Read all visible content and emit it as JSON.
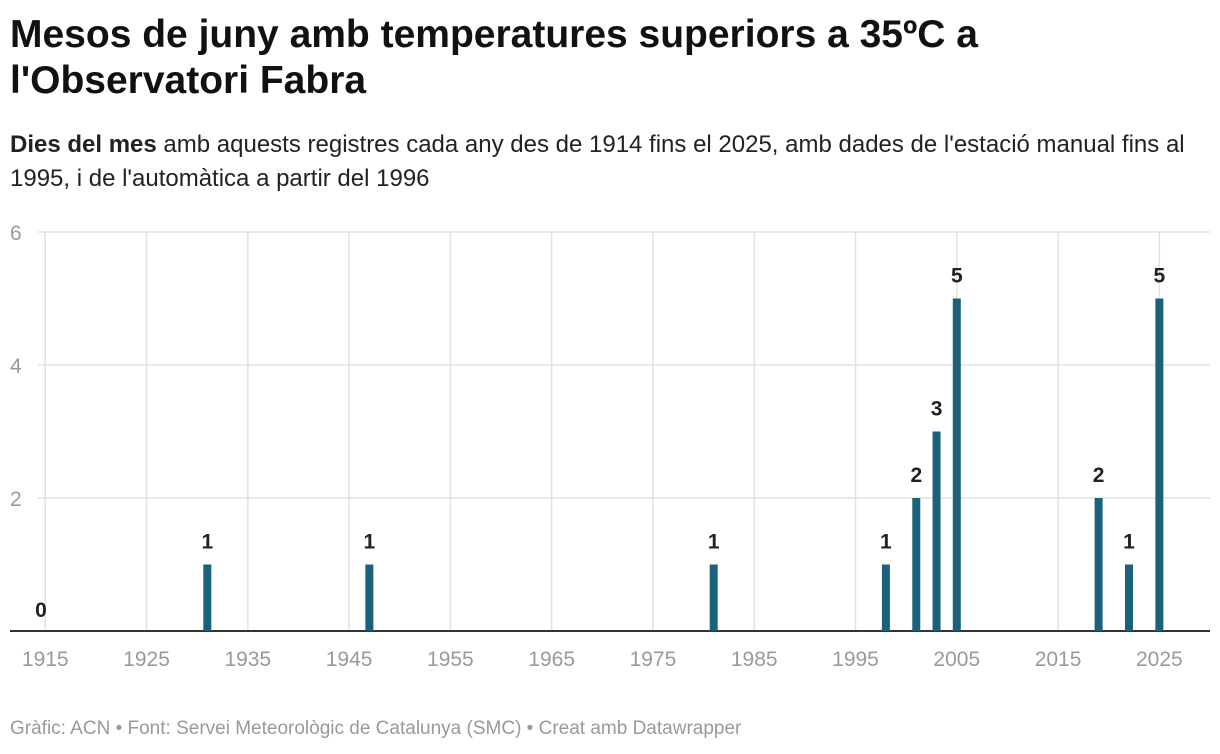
{
  "title": "Mesos de juny amb temperatures superiors a 35ºC a l'Observatori Fabra",
  "subtitle_bold": "Dies del mes",
  "subtitle_rest": " amb aquests registres cada any des de 1914 fins el 2025, amb dades de l'estació manual fins al 1995, i de l'automàtica a partir del 1996",
  "footer": "Gràfic: ACN • Font: Servei Meteorològic de Catalunya (SMC) • Creat amb Datawrapper",
  "colors": {
    "bar": "#1b6179",
    "grid": "#e2e2e2",
    "axis": "#333333",
    "tick": "#9a9a9a",
    "label": "#222222"
  },
  "chart_data": {
    "type": "bar",
    "title": "Mesos de juny amb temperatures superiors a 35ºC a l'Observatori Fabra",
    "xlabel": "",
    "ylabel": "Dies del mes",
    "xlim": [
      1913,
      2030
    ],
    "ylim": [
      0,
      6
    ],
    "x_ticks": [
      1915,
      1925,
      1935,
      1945,
      1955,
      1965,
      1975,
      1985,
      1995,
      2005,
      2015,
      2025
    ],
    "y_ticks": [
      2,
      4,
      6
    ],
    "grid": true,
    "zero_label": "0",
    "bars": [
      {
        "year": 1931,
        "value": 1
      },
      {
        "year": 1947,
        "value": 1
      },
      {
        "year": 1981,
        "value": 1
      },
      {
        "year": 1998,
        "value": 1
      },
      {
        "year": 2001,
        "value": 2
      },
      {
        "year": 2003,
        "value": 3
      },
      {
        "year": 2005,
        "value": 5
      },
      {
        "year": 2019,
        "value": 2
      },
      {
        "year": 2022,
        "value": 1
      },
      {
        "year": 2025,
        "value": 5
      }
    ]
  }
}
